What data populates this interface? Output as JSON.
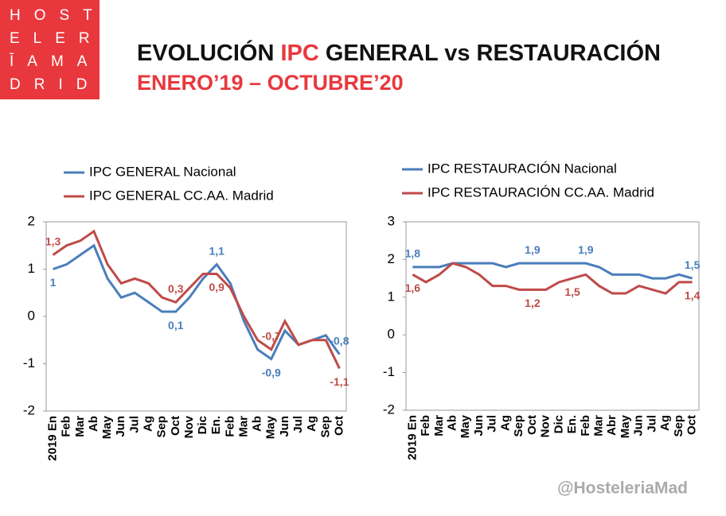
{
  "logo": [
    "HOST",
    "ELER",
    "ĪAMA",
    "DRID"
  ],
  "header": {
    "title_parts": [
      "EVOLUCIÓN",
      "IPC",
      "GENERAL vs RESTAURACIÓN"
    ],
    "subtitle": "ENERO’19 – OCTUBRE’20"
  },
  "footer": {
    "handle": "@HosteleriaMad"
  },
  "chart_data": [
    {
      "type": "line",
      "categories": [
        "2019 En",
        "Feb",
        "Mar",
        "Ab",
        "May",
        "Jun",
        "Jul",
        "Ag",
        "Sep",
        "Oct",
        "Nov",
        "Dic",
        "En.",
        "Feb",
        "Mar",
        "Ab",
        "May",
        "Jun",
        "Jul",
        "Ag",
        "Sep",
        "Oct"
      ],
      "series": [
        {
          "name": "IPC GENERAL Nacional",
          "color": "#4a7ebb",
          "values": [
            1,
            1.1,
            1.3,
            1.5,
            0.8,
            0.4,
            0.5,
            0.3,
            0.1,
            0.1,
            0.4,
            0.8,
            1.1,
            0.7,
            -0.1,
            -0.7,
            -0.9,
            -0.3,
            -0.6,
            -0.5,
            -0.4,
            -0.8
          ],
          "value_labels": [
            "1",
            null,
            null,
            null,
            null,
            null,
            null,
            null,
            null,
            "0,1",
            null,
            null,
            "1,1",
            null,
            null,
            null,
            "-0,9",
            null,
            null,
            null,
            null,
            "-0,8"
          ]
        },
        {
          "name": "IPC GENERAL CC.AA. Madrid",
          "color": "#be4b48",
          "values": [
            1.3,
            1.5,
            1.6,
            1.8,
            1.1,
            0.7,
            0.8,
            0.7,
            0.4,
            0.3,
            0.6,
            0.9,
            0.9,
            0.6,
            0.0,
            -0.5,
            -0.7,
            -0.1,
            -0.6,
            -0.5,
            -0.5,
            -1.1
          ],
          "value_labels": [
            "1,3",
            null,
            null,
            null,
            null,
            null,
            null,
            null,
            null,
            "0,3",
            null,
            null,
            "0,9",
            null,
            null,
            null,
            "-0,7",
            null,
            null,
            null,
            null,
            "-1,1"
          ]
        }
      ],
      "ylim": [
        -2,
        2
      ],
      "yticks": [
        -2,
        -1,
        0,
        1,
        2
      ],
      "grid": false,
      "legend": "top"
    },
    {
      "type": "line",
      "categories": [
        "2019 En",
        "Feb",
        "Mar",
        "Ab",
        "May",
        "Jun",
        "Jul",
        "Ag",
        "Sep",
        "Oct",
        "Nov",
        "Dic",
        "En.",
        "Feb",
        "Mar",
        "Abr",
        "May",
        "Jun",
        "Jul",
        "Ag",
        "Sep",
        "Oct"
      ],
      "series": [
        {
          "name": "IPC RESTAURACIÓN Nacional",
          "color": "#4a7ebb",
          "values": [
            1.8,
            1.8,
            1.8,
            1.9,
            1.9,
            1.9,
            1.9,
            1.8,
            1.9,
            1.9,
            1.9,
            1.9,
            1.9,
            1.9,
            1.8,
            1.6,
            1.6,
            1.6,
            1.5,
            1.5,
            1.6,
            1.5
          ],
          "value_labels": [
            "1,8",
            null,
            null,
            null,
            null,
            null,
            null,
            null,
            null,
            "1,9",
            null,
            null,
            null,
            "1,9",
            null,
            null,
            null,
            null,
            null,
            null,
            null,
            "1,5"
          ]
        },
        {
          "name": "IPC RESTAURACIÓN CC.AA. Madrid",
          "color": "#be4b48",
          "values": [
            1.6,
            1.4,
            1.6,
            1.9,
            1.8,
            1.6,
            1.3,
            1.3,
            1.2,
            1.2,
            1.2,
            1.4,
            1.5,
            1.6,
            1.3,
            1.1,
            1.1,
            1.3,
            1.2,
            1.1,
            1.4,
            1.4
          ],
          "value_labels": [
            "1,6",
            null,
            null,
            null,
            null,
            null,
            null,
            null,
            null,
            "1,2",
            null,
            null,
            "1,5",
            null,
            null,
            null,
            null,
            null,
            null,
            null,
            null,
            "1,4"
          ]
        }
      ],
      "ylim": [
        -2,
        3
      ],
      "yticks": [
        -2,
        -1,
        0,
        1,
        2,
        3
      ],
      "grid": false,
      "legend": "top"
    }
  ]
}
